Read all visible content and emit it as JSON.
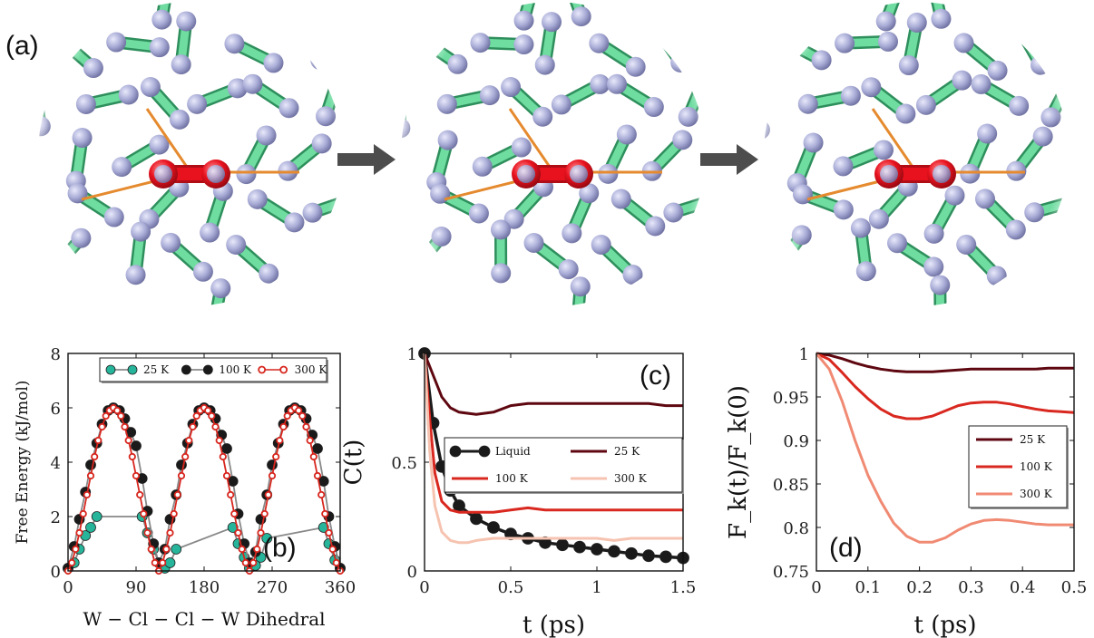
{
  "panel_a": {
    "label": "(a)",
    "snapshots": 3,
    "colors": {
      "molecule": "#57c98a",
      "atom": "#a9acd6",
      "central": "#e8121e",
      "bond": "#e58a2e",
      "arrow": "#4d4d4d"
    }
  },
  "chart_data": [
    {
      "panel": "(b)",
      "type": "scatter",
      "xlabel": "W − Cl − Cl − W Dihedral",
      "ylabel": "Free Energy (kJ/mol)",
      "xlim": [
        0,
        360
      ],
      "ylim": [
        0,
        8
      ],
      "xticks": [
        0,
        90,
        180,
        270,
        360
      ],
      "xtick_labels": [
        "0",
        "90",
        "180",
        "270",
        "360"
      ],
      "yticks": [
        0,
        2,
        4,
        6,
        8
      ],
      "ytick_labels": [
        "0",
        "2",
        "4",
        "6",
        "8"
      ],
      "legend": "top",
      "series": [
        {
          "name": "25 K",
          "color": "#26b59a",
          "marker": "filled",
          "x": [
            0,
            8,
            15,
            23,
            30,
            38,
            98,
            105,
            113,
            120,
            128,
            135,
            143,
            218,
            225,
            233,
            240,
            248,
            255,
            263,
            338,
            345,
            353,
            360
          ],
          "y": [
            0.1,
            0.3,
            0.8,
            1.3,
            1.6,
            2.0,
            2.0,
            1.4,
            0.8,
            0.3,
            0.1,
            0.3,
            0.8,
            1.6,
            1.0,
            0.5,
            0.1,
            0.2,
            0.5,
            1.2,
            1.6,
            1.0,
            0.4,
            0.1
          ]
        },
        {
          "name": "100 K",
          "color": "#1a1a1a",
          "marker": "filled",
          "x": [
            0,
            8,
            15,
            23,
            30,
            38,
            45,
            53,
            60,
            68,
            75,
            83,
            90,
            98,
            105,
            113,
            120,
            128,
            135,
            143,
            150,
            158,
            165,
            173,
            180,
            188,
            195,
            203,
            210,
            218,
            225,
            233,
            240,
            248,
            255,
            263,
            270,
            278,
            285,
            293,
            300,
            308,
            315,
            323,
            330,
            338,
            345,
            353,
            360
          ],
          "y": [
            0.1,
            0.9,
            1.9,
            2.9,
            3.9,
            4.7,
            5.4,
            5.9,
            6.0,
            5.9,
            5.6,
            5.1,
            4.6,
            3.4,
            2.2,
            1.0,
            0.3,
            0.8,
            1.9,
            2.8,
            3.9,
            4.7,
            5.4,
            5.9,
            6.0,
            5.9,
            5.6,
            5.0,
            4.5,
            3.3,
            2.1,
            1.0,
            0.3,
            0.7,
            1.9,
            2.8,
            3.9,
            4.7,
            5.4,
            5.9,
            6.0,
            5.9,
            5.6,
            5.0,
            4.5,
            3.3,
            2.0,
            0.9,
            0.1
          ]
        },
        {
          "name": "300 K",
          "color": "#d7261e",
          "marker": "open",
          "x": [
            0,
            5,
            10,
            15,
            20,
            25,
            30,
            35,
            40,
            45,
            50,
            55,
            60,
            65,
            70,
            75,
            80,
            85,
            90,
            95,
            100,
            105,
            110,
            115,
            120,
            125,
            130,
            135,
            140,
            145,
            150,
            155,
            160,
            165,
            170,
            175,
            180,
            185,
            190,
            195,
            200,
            205,
            210,
            215,
            220,
            225,
            230,
            235,
            240,
            245,
            250,
            255,
            260,
            265,
            270,
            275,
            280,
            285,
            290,
            295,
            300,
            305,
            310,
            315,
            320,
            325,
            330,
            335,
            340,
            345,
            350,
            355,
            360
          ],
          "y": [
            0.0,
            0.3,
            0.8,
            1.4,
            2.1,
            2.8,
            3.5,
            4.2,
            4.8,
            5.3,
            5.7,
            5.9,
            6.0,
            5.9,
            5.7,
            5.3,
            4.8,
            4.2,
            3.5,
            2.8,
            2.1,
            1.4,
            0.8,
            0.3,
            0.0,
            0.3,
            0.8,
            1.4,
            2.1,
            2.8,
            3.5,
            4.2,
            4.8,
            5.3,
            5.7,
            5.9,
            6.0,
            5.9,
            5.7,
            5.3,
            4.8,
            4.2,
            3.5,
            2.8,
            2.1,
            1.4,
            0.8,
            0.3,
            0.0,
            0.3,
            0.8,
            1.4,
            2.1,
            2.8,
            3.5,
            4.2,
            4.8,
            5.3,
            5.7,
            5.9,
            6.0,
            5.9,
            5.7,
            5.3,
            4.8,
            4.2,
            3.5,
            2.8,
            2.1,
            1.4,
            0.8,
            0.3,
            0.0
          ]
        }
      ]
    },
    {
      "panel": "(c)",
      "type": "line",
      "xlabel": "t (ps)",
      "ylabel": "C(t)",
      "xlim": [
        0,
        1.5
      ],
      "ylim": [
        0,
        1
      ],
      "xticks": [
        0,
        0.5,
        1,
        1.5
      ],
      "xtick_labels": [
        "0",
        "0.5",
        "1",
        "1.5"
      ],
      "yticks": [
        0,
        0.5,
        1
      ],
      "ytick_labels": [
        "0",
        "0.5",
        "1"
      ],
      "legend": "center",
      "series": [
        {
          "name": "Liquid",
          "color": "#1a1a1a",
          "marker": "filled",
          "x": [
            0.0,
            0.05,
            0.1,
            0.15,
            0.2,
            0.3,
            0.4,
            0.5,
            0.6,
            0.7,
            0.8,
            0.9,
            1.0,
            1.1,
            1.2,
            1.3,
            1.4,
            1.5
          ],
          "y": [
            1.0,
            0.68,
            0.48,
            0.37,
            0.3,
            0.24,
            0.2,
            0.17,
            0.15,
            0.13,
            0.12,
            0.11,
            0.1,
            0.09,
            0.08,
            0.07,
            0.065,
            0.06
          ]
        },
        {
          "name": "25 K",
          "color": "#5e0710",
          "x": [
            0.0,
            0.05,
            0.1,
            0.15,
            0.2,
            0.3,
            0.4,
            0.5,
            0.6,
            0.7,
            0.8,
            0.9,
            1.0,
            1.1,
            1.2,
            1.3,
            1.4,
            1.5
          ],
          "y": [
            1.0,
            0.9,
            0.8,
            0.75,
            0.73,
            0.72,
            0.73,
            0.76,
            0.77,
            0.77,
            0.77,
            0.77,
            0.77,
            0.77,
            0.77,
            0.77,
            0.76,
            0.76
          ]
        },
        {
          "name": "100 K",
          "color": "#d9281f",
          "x": [
            0.0,
            0.03,
            0.06,
            0.1,
            0.15,
            0.2,
            0.3,
            0.4,
            0.5,
            0.6,
            0.7,
            0.8,
            0.9,
            1.0,
            1.1,
            1.2,
            1.3,
            1.4,
            1.5
          ],
          "y": [
            1.0,
            0.7,
            0.45,
            0.32,
            0.28,
            0.27,
            0.27,
            0.27,
            0.28,
            0.29,
            0.28,
            0.28,
            0.28,
            0.28,
            0.28,
            0.28,
            0.28,
            0.28,
            0.28
          ]
        },
        {
          "name": "300 K",
          "color": "#f6c3b0",
          "x": [
            0.0,
            0.03,
            0.06,
            0.1,
            0.15,
            0.2,
            0.25,
            0.3,
            0.4,
            0.5,
            0.6,
            0.7,
            0.8,
            0.9,
            1.0,
            1.1,
            1.2,
            1.3,
            1.4,
            1.5
          ],
          "y": [
            1.0,
            0.55,
            0.3,
            0.18,
            0.14,
            0.13,
            0.13,
            0.14,
            0.15,
            0.15,
            0.15,
            0.15,
            0.15,
            0.15,
            0.15,
            0.14,
            0.15,
            0.15,
            0.15,
            0.15
          ]
        }
      ]
    },
    {
      "panel": "(d)",
      "type": "line",
      "xlabel": "t (ps)",
      "ylabel": "F_k(t)/F_k(0)",
      "xlim": [
        0,
        0.5
      ],
      "ylim": [
        0.75,
        1
      ],
      "xticks": [
        0,
        0.1,
        0.2,
        0.3,
        0.4,
        0.5
      ],
      "xtick_labels": [
        "0",
        "0.1",
        "0.2",
        "0.3",
        "0.4",
        "0.5"
      ],
      "yticks": [
        0.75,
        0.8,
        0.85,
        0.9,
        0.95,
        1
      ],
      "ytick_labels": [
        "0.75",
        "0.8",
        "0.85",
        "0.9",
        "0.95",
        "1"
      ],
      "legend": "right",
      "series": [
        {
          "name": "25 K",
          "color": "#5e0710",
          "x": [
            0,
            0.025,
            0.05,
            0.075,
            0.1,
            0.125,
            0.15,
            0.175,
            0.2,
            0.225,
            0.25,
            0.275,
            0.3,
            0.325,
            0.35,
            0.375,
            0.4,
            0.425,
            0.45,
            0.475,
            0.5
          ],
          "y": [
            1.0,
            0.998,
            0.994,
            0.989,
            0.985,
            0.982,
            0.98,
            0.979,
            0.979,
            0.979,
            0.98,
            0.981,
            0.982,
            0.982,
            0.982,
            0.982,
            0.982,
            0.982,
            0.983,
            0.983,
            0.983
          ]
        },
        {
          "name": "100 K",
          "color": "#d9281f",
          "x": [
            0,
            0.025,
            0.05,
            0.075,
            0.1,
            0.125,
            0.15,
            0.175,
            0.2,
            0.225,
            0.25,
            0.275,
            0.3,
            0.325,
            0.35,
            0.375,
            0.4,
            0.425,
            0.45,
            0.475,
            0.5
          ],
          "y": [
            1.0,
            0.993,
            0.978,
            0.962,
            0.948,
            0.936,
            0.928,
            0.925,
            0.925,
            0.928,
            0.934,
            0.94,
            0.943,
            0.944,
            0.944,
            0.942,
            0.939,
            0.936,
            0.934,
            0.933,
            0.932
          ]
        },
        {
          "name": "300 K",
          "color": "#f08a73",
          "x": [
            0,
            0.025,
            0.05,
            0.075,
            0.1,
            0.125,
            0.15,
            0.175,
            0.2,
            0.225,
            0.25,
            0.275,
            0.3,
            0.325,
            0.35,
            0.375,
            0.4,
            0.425,
            0.45,
            0.475,
            0.5
          ],
          "y": [
            1.0,
            0.982,
            0.945,
            0.9,
            0.86,
            0.83,
            0.805,
            0.79,
            0.783,
            0.783,
            0.788,
            0.797,
            0.804,
            0.808,
            0.809,
            0.808,
            0.806,
            0.804,
            0.803,
            0.803,
            0.803
          ]
        }
      ]
    }
  ]
}
